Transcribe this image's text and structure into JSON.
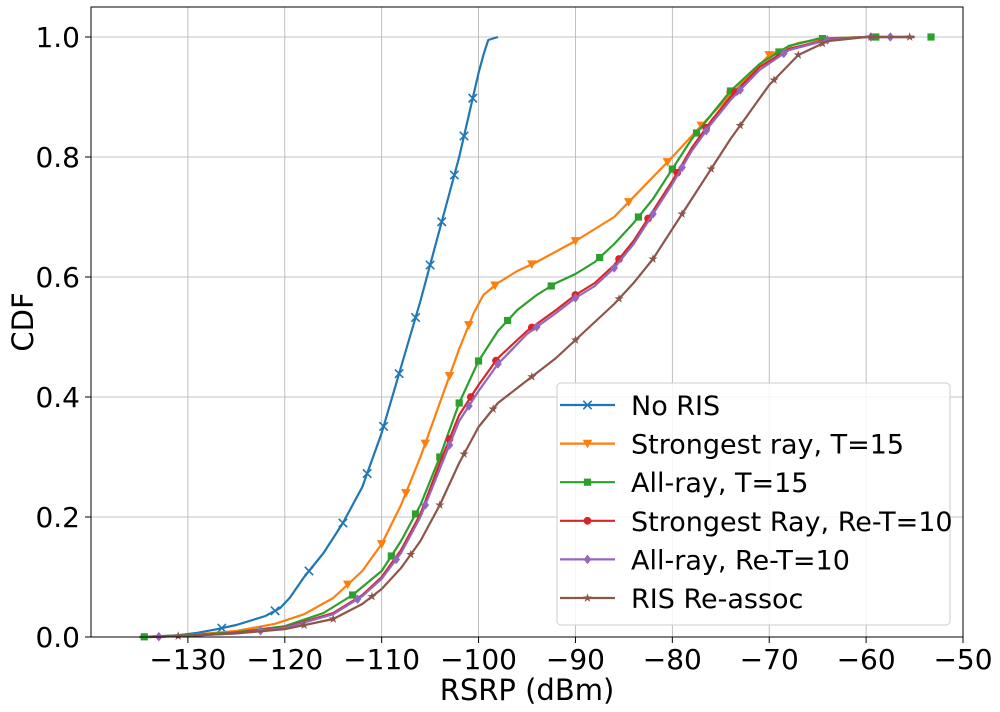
{
  "chart_data": {
    "type": "line",
    "title": "",
    "xlabel": "RSRP (dBm)",
    "ylabel": "CDF",
    "xlim": [
      -140,
      -50
    ],
    "ylim": [
      0,
      1.05
    ],
    "xticks": [
      -130,
      -120,
      -110,
      -100,
      -90,
      -80,
      -70,
      -60,
      -50
    ],
    "xtick_labels": [
      "−130",
      "−120",
      "−110",
      "−100",
      "−90",
      "−80",
      "−70",
      "−60",
      "−50"
    ],
    "yticks": [
      0.0,
      0.2,
      0.4,
      0.6,
      0.8,
      1.0
    ],
    "ytick_labels": [
      "0.0",
      "0.2",
      "0.4",
      "0.6",
      "0.8",
      "1.0"
    ],
    "grid": true,
    "legend_position": "lower-right",
    "series": [
      {
        "name": "No RIS",
        "color": "#1f77b4",
        "marker": "x",
        "x": [
          -134.5,
          -131,
          -129,
          -127,
          -125,
          -122,
          -120.5,
          -119.5,
          -118,
          -116,
          -114,
          -112,
          -110,
          -108,
          -106,
          -104,
          -102,
          -101,
          -100,
          -99.5,
          -99,
          -98
        ],
        "y": [
          0.0,
          0.003,
          0.007,
          0.013,
          0.02,
          0.035,
          0.048,
          0.065,
          0.1,
          0.14,
          0.19,
          0.25,
          0.34,
          0.45,
          0.56,
          0.68,
          0.8,
          0.87,
          0.94,
          0.97,
          0.995,
          1.0
        ],
        "marker_x": [
          -126.5,
          -121,
          -117.5,
          -114,
          -111.5,
          -109.8,
          -108.2,
          -106.5,
          -105,
          -103.8,
          -102.5,
          -101.5,
          -100.6
        ]
      },
      {
        "name": "Strongest ray, T=15",
        "color": "#ff7f0e",
        "marker": "triangle-down",
        "x": [
          -135,
          -130,
          -125,
          -121,
          -118,
          -115,
          -112,
          -110,
          -108,
          -106,
          -104,
          -102,
          -100.5,
          -99.5,
          -98,
          -96,
          -94,
          -90,
          -86,
          -83,
          -80,
          -76,
          -73,
          -70,
          -67,
          -64,
          -60
        ],
        "y": [
          0.0,
          0.003,
          0.01,
          0.022,
          0.038,
          0.065,
          0.11,
          0.155,
          0.22,
          0.3,
          0.39,
          0.48,
          0.54,
          0.57,
          0.59,
          0.61,
          0.625,
          0.66,
          0.7,
          0.75,
          0.8,
          0.87,
          0.92,
          0.97,
          0.99,
          0.998,
          1.0
        ],
        "marker_x": [
          -113.5,
          -110,
          -107.5,
          -105.5,
          -103,
          -101,
          -98.3,
          -94.5,
          -90,
          -84.5,
          -80.5,
          -77,
          -74,
          -70
        ]
      },
      {
        "name": "All-ray, T=15",
        "color": "#2ca02c",
        "marker": "square",
        "x": [
          -135,
          -130,
          -125,
          -120,
          -116,
          -113,
          -110,
          -108,
          -106,
          -104,
          -102,
          -100,
          -98,
          -96,
          -94,
          -92,
          -90,
          -88,
          -86,
          -84,
          -82,
          -80,
          -78,
          -76,
          -74,
          -71,
          -68,
          -65,
          -60,
          -55
        ],
        "y": [
          0.0,
          0.003,
          0.008,
          0.018,
          0.04,
          0.07,
          0.11,
          0.16,
          0.22,
          0.3,
          0.39,
          0.46,
          0.51,
          0.545,
          0.57,
          0.59,
          0.605,
          0.625,
          0.655,
          0.69,
          0.73,
          0.78,
          0.83,
          0.87,
          0.91,
          0.955,
          0.985,
          0.997,
          1.0,
          1.0
        ],
        "marker_x": [
          -134.5,
          -113,
          -109,
          -106.5,
          -104,
          -102,
          -100,
          -97,
          -92.5,
          -87.5,
          -83.5,
          -80,
          -77.5,
          -74,
          -69,
          -64.5,
          -59,
          -53.3
        ]
      },
      {
        "name": "Strongest Ray, Re-T=10",
        "color": "#d62728",
        "marker": "circle",
        "x": [
          -134,
          -130,
          -125,
          -120,
          -115,
          -112,
          -110,
          -108,
          -106,
          -104,
          -102,
          -100,
          -98,
          -95,
          -92,
          -90,
          -88,
          -86,
          -84,
          -82,
          -80,
          -78,
          -76,
          -74,
          -71,
          -68,
          -64,
          -60,
          -55
        ],
        "y": [
          0.0,
          0.002,
          0.007,
          0.016,
          0.04,
          0.07,
          0.1,
          0.145,
          0.205,
          0.29,
          0.37,
          0.42,
          0.465,
          0.51,
          0.545,
          0.57,
          0.59,
          0.62,
          0.66,
          0.71,
          0.76,
          0.815,
          0.86,
          0.9,
          0.95,
          0.98,
          0.996,
          1.0,
          1.0
        ],
        "marker_x": [
          -103,
          -100.8,
          -98.2,
          -94.5,
          -90,
          -85.5,
          -82.5,
          -79.5,
          -76.5,
          -73.5
        ]
      },
      {
        "name": "All-ray, Re-T=10",
        "color": "#9467bd",
        "marker": "diamond",
        "x": [
          -134,
          -130,
          -125,
          -120,
          -115,
          -112,
          -110,
          -108,
          -106,
          -104,
          -102,
          -100,
          -98,
          -95,
          -92,
          -90,
          -88,
          -86,
          -84,
          -82,
          -80,
          -78,
          -76,
          -74,
          -71,
          -68,
          -64,
          -60,
          -55
        ],
        "y": [
          0.0,
          0.002,
          0.006,
          0.015,
          0.038,
          0.068,
          0.097,
          0.14,
          0.2,
          0.28,
          0.36,
          0.41,
          0.455,
          0.505,
          0.54,
          0.565,
          0.585,
          0.615,
          0.655,
          0.705,
          0.755,
          0.81,
          0.855,
          0.895,
          0.945,
          0.978,
          0.995,
          1.0,
          1.0
        ],
        "marker_x": [
          -133,
          -122.5,
          -112.5,
          -108.5,
          -105.5,
          -103,
          -101,
          -98,
          -94,
          -90,
          -86,
          -82,
          -79,
          -76.5,
          -73,
          -68.5,
          -64,
          -59.5,
          -57.5
        ]
      },
      {
        "name": "RIS Re-assoc",
        "color": "#8c564b",
        "marker": "star",
        "x": [
          -134,
          -130,
          -125,
          -120,
          -115,
          -112,
          -110,
          -108,
          -106,
          -104,
          -102,
          -100,
          -98,
          -96,
          -94,
          -92,
          -90,
          -88,
          -86,
          -84,
          -82,
          -80,
          -78,
          -76,
          -74,
          -72,
          -70,
          -67,
          -64,
          -60,
          -55
        ],
        "y": [
          0.0,
          0.002,
          0.006,
          0.013,
          0.03,
          0.055,
          0.08,
          0.115,
          0.16,
          0.22,
          0.29,
          0.35,
          0.39,
          0.415,
          0.44,
          0.465,
          0.495,
          0.525,
          0.555,
          0.59,
          0.63,
          0.68,
          0.73,
          0.78,
          0.83,
          0.875,
          0.92,
          0.97,
          0.993,
          1.0,
          1.0
        ],
        "marker_x": [
          -131,
          -118,
          -115,
          -111,
          -107,
          -104,
          -101.5,
          -98.5,
          -94.5,
          -90,
          -85.5,
          -82,
          -79,
          -76,
          -73,
          -69.5,
          -67,
          -64.5,
          -59.5,
          -55.5
        ]
      }
    ]
  }
}
